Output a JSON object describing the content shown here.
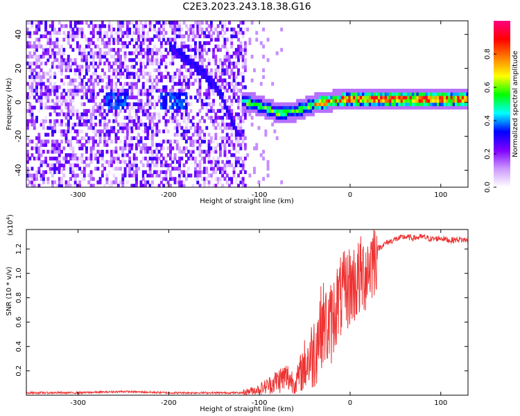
{
  "title": "C2E3.2023.243.18.38.G16",
  "chart_data": [
    {
      "type": "heatmap",
      "xlabel": "Height of straight line (km)",
      "ylabel": "Frequency (Hz)",
      "xlim": [
        -357,
        130
      ],
      "ylim": [
        -50,
        48
      ],
      "xticks": [
        -300,
        -200,
        -100,
        0,
        100
      ],
      "yticks": [
        -40,
        -20,
        0,
        20,
        40
      ],
      "colorbar": {
        "label": "Normalized spectral amplitude",
        "range": [
          0,
          1
        ],
        "ticks": [
          0.0,
          0.2,
          0.4,
          0.6,
          0.8
        ],
        "tick_labels": [
          "0.0",
          "0.2",
          "0.4",
          "0.6",
          "0.8"
        ],
        "colors": [
          "#ffffff",
          "#cc99ff",
          "#7f00ff",
          "#0000ff",
          "#00ffff",
          "#00ff00",
          "#ffff00",
          "#ff8000",
          "#ff0000",
          "#ff0080"
        ]
      },
      "features": {
        "noise_region_x": [
          -357,
          -115
        ],
        "tone_track": [
          {
            "x": -120,
            "y": 0
          },
          {
            "x": -100,
            "y": -3
          },
          {
            "x": -80,
            "y": -7
          },
          {
            "x": -60,
            "y": -6
          },
          {
            "x": -40,
            "y": -2
          },
          {
            "x": -20,
            "y": 0
          },
          {
            "x": 0,
            "y": 1
          },
          {
            "x": 50,
            "y": 1
          },
          {
            "x": 100,
            "y": 1
          },
          {
            "x": 130,
            "y": 1
          }
        ],
        "diagonal_streak": [
          {
            "x": -200,
            "y": 32
          },
          {
            "x": -170,
            "y": 20
          },
          {
            "x": -145,
            "y": 5
          },
          {
            "x": -125,
            "y": -20
          }
        ]
      }
    },
    {
      "type": "line",
      "xlabel": "Height of straight line (km)",
      "ylabel": "SNR (10 * v/v)",
      "exponent_label": "(x10",
      "exponent_sup": "4",
      "exponent_close": ")",
      "xlim": [
        -357,
        130
      ],
      "ylim": [
        0,
        1.36
      ],
      "xticks": [
        -300,
        -200,
        -100,
        0,
        100
      ],
      "yticks": [
        0.2,
        0.4,
        0.6,
        0.8,
        1.0,
        1.2
      ],
      "ytick_labels": [
        "0.2",
        "0.4",
        "0.6",
        "0.8",
        "1.0",
        "1.2"
      ],
      "series": [
        {
          "color": "#ee3333",
          "x": [
            -357,
            -300,
            -250,
            -200,
            -150,
            -120,
            -100,
            -90,
            -80,
            -70,
            -60,
            -50,
            -40,
            -35,
            -30,
            -25,
            -20,
            -15,
            -10,
            -5,
            0,
            5,
            10,
            20,
            30,
            40,
            50,
            60,
            70,
            80,
            90,
            100,
            110,
            120,
            130
          ],
          "y": [
            0.02,
            0.02,
            0.03,
            0.02,
            0.02,
            0.02,
            0.05,
            0.08,
            0.12,
            0.15,
            0.1,
            0.25,
            0.35,
            0.5,
            0.6,
            0.55,
            0.6,
            0.75,
            0.8,
            0.85,
            0.9,
            0.92,
            0.95,
            1.05,
            1.2,
            1.25,
            1.28,
            1.3,
            1.29,
            1.3,
            1.28,
            1.29,
            1.27,
            1.28,
            1.27
          ]
        }
      ]
    }
  ]
}
